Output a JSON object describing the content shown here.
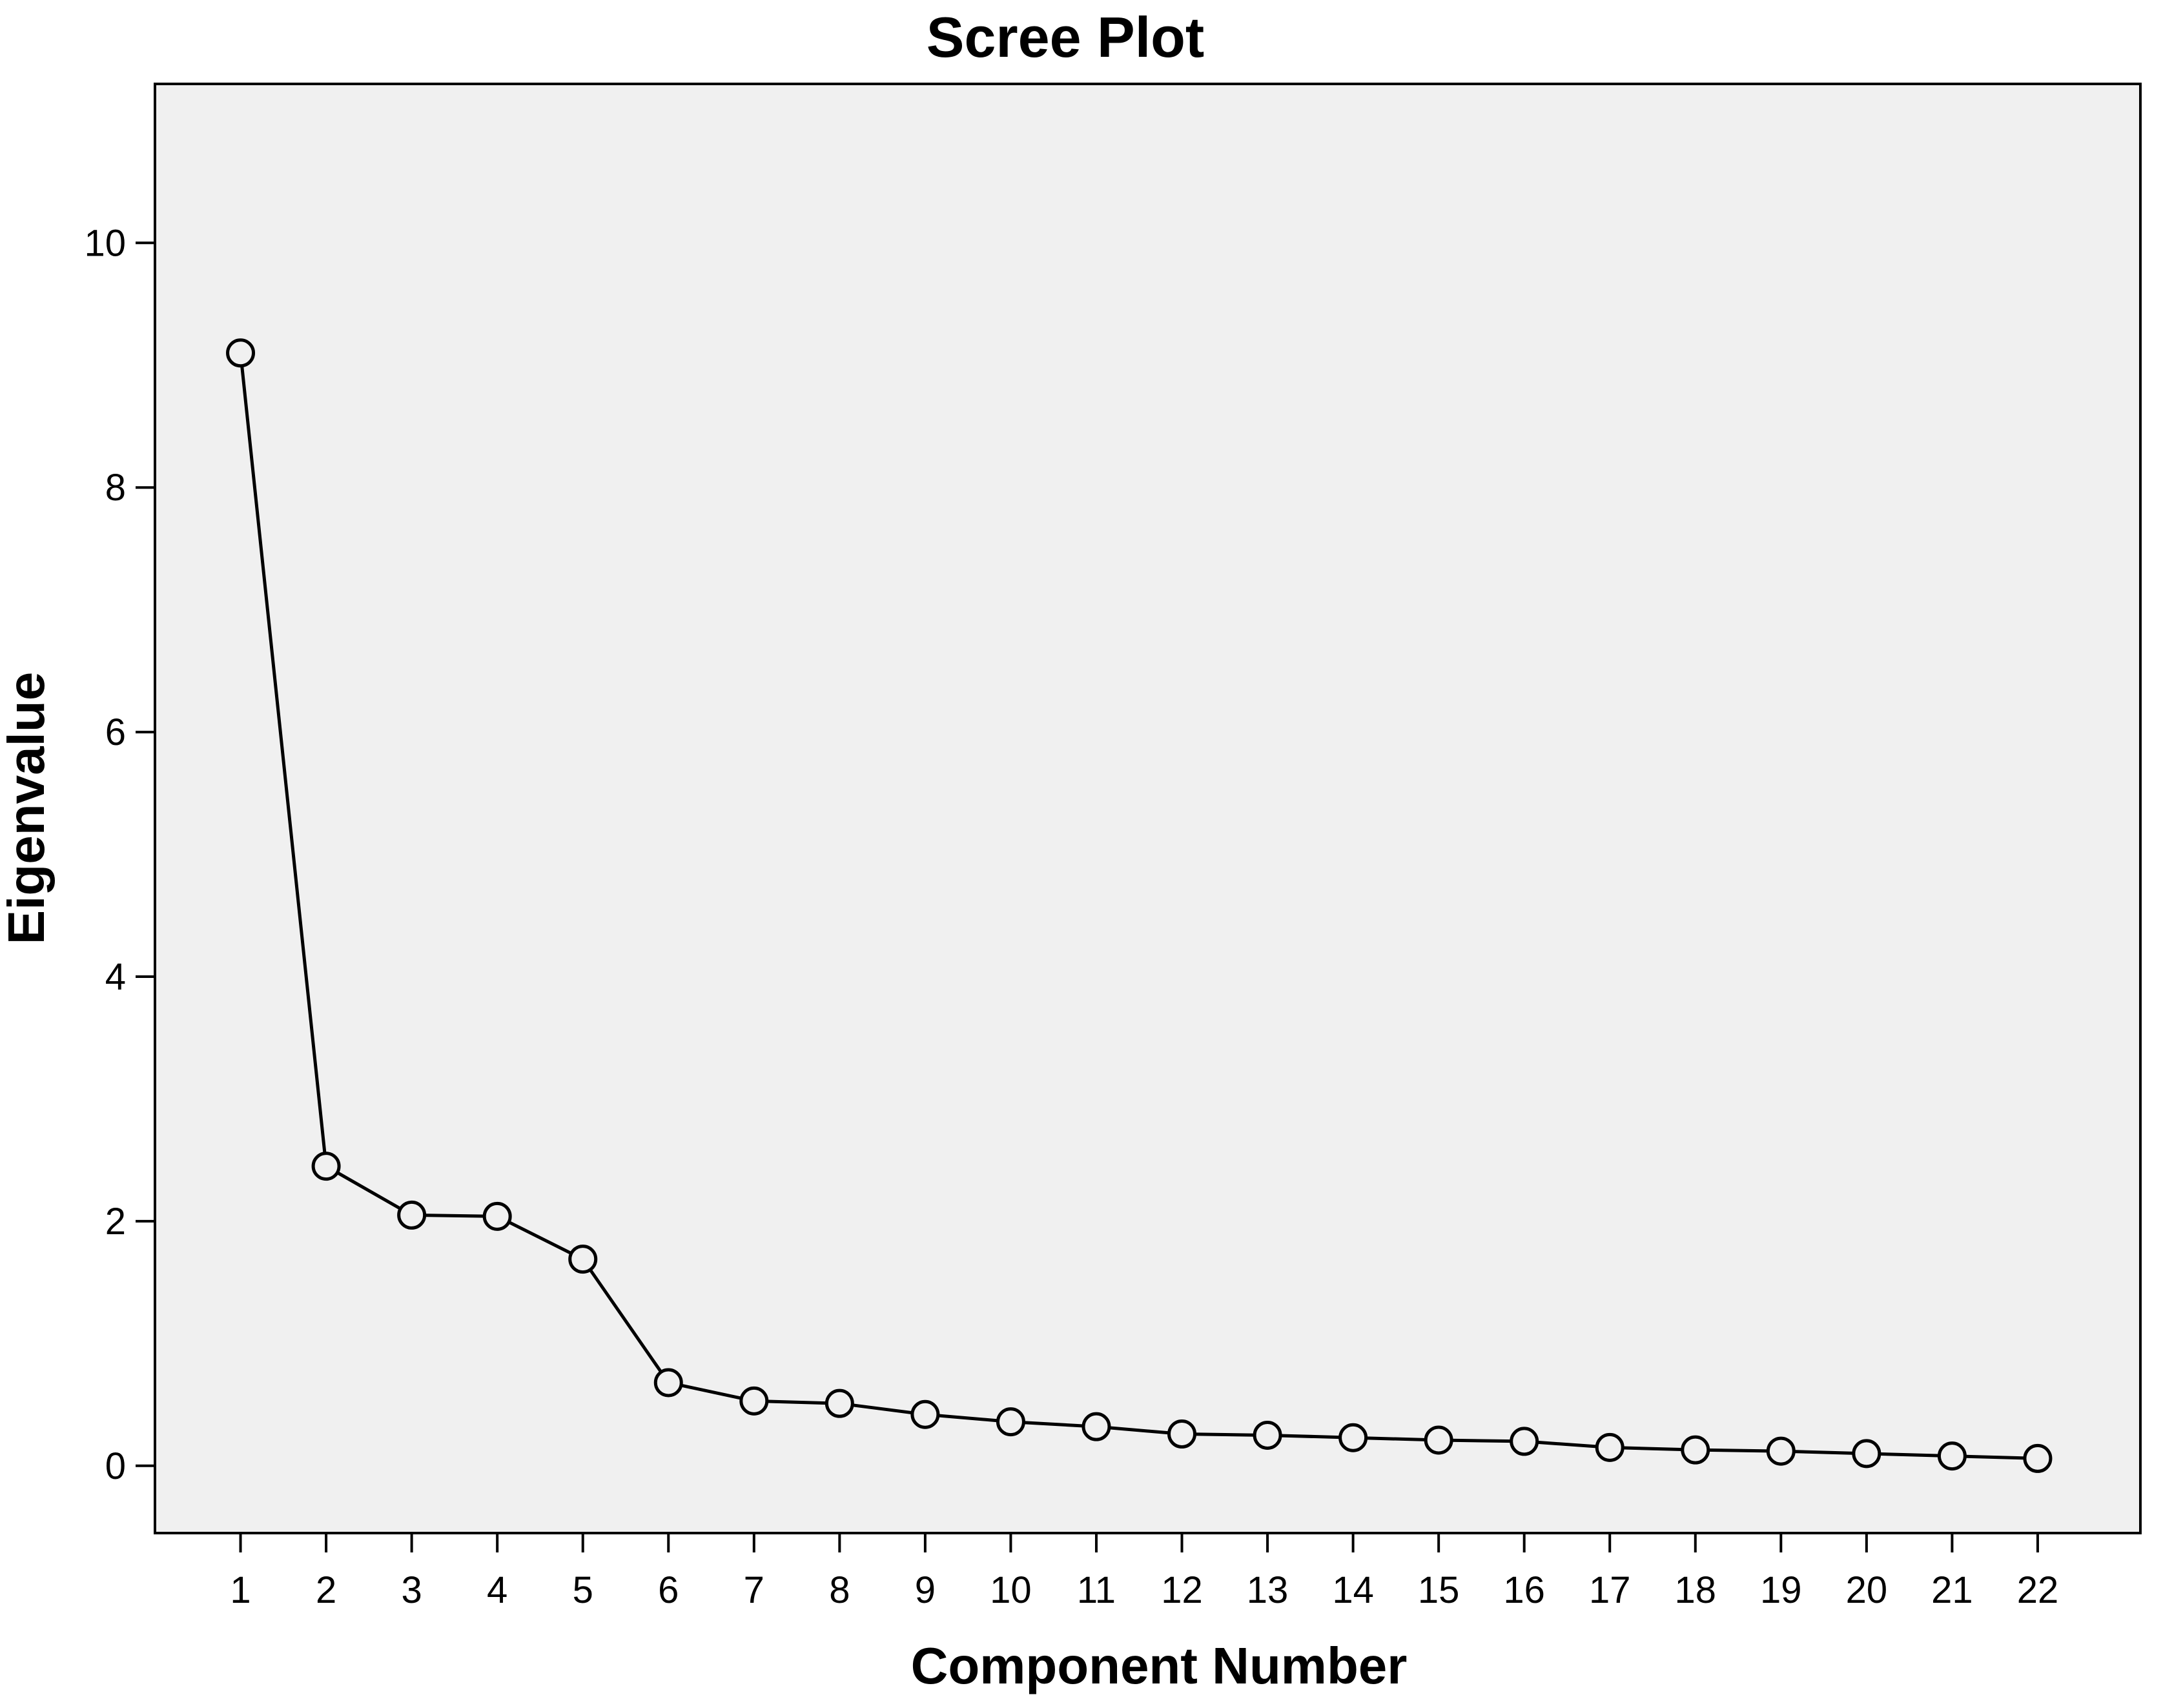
{
  "chart_data": {
    "type": "line",
    "title": "Scree Plot",
    "xlabel": "Component Number",
    "ylabel": "Eigenvalue",
    "x": [
      1,
      2,
      3,
      4,
      5,
      6,
      7,
      8,
      9,
      10,
      11,
      12,
      13,
      14,
      15,
      16,
      17,
      18,
      19,
      20,
      21,
      22
    ],
    "y": [
      9.1,
      2.45,
      2.05,
      2.04,
      1.69,
      0.68,
      0.53,
      0.51,
      0.42,
      0.36,
      0.32,
      0.26,
      0.25,
      0.23,
      0.21,
      0.2,
      0.15,
      0.13,
      0.12,
      0.1,
      0.08,
      0.06
    ],
    "xlim": [
      0,
      23.2
    ],
    "ylim": [
      -0.55,
      11.3
    ],
    "x_ticks": [
      "1",
      "2",
      "3",
      "4",
      "5",
      "6",
      "7",
      "8",
      "9",
      "10",
      "11",
      "12",
      "13",
      "14",
      "15",
      "16",
      "17",
      "18",
      "19",
      "20",
      "21",
      "22"
    ],
    "y_ticks": [
      "0",
      "2",
      "4",
      "6",
      "8",
      "10"
    ],
    "y_tick_values": [
      0,
      2,
      4,
      6,
      8,
      10
    ],
    "grid": false,
    "marker": "open-circle",
    "colors": {
      "plot_background": "#f0f0f0",
      "line": "#000000",
      "marker_fill": "#f0f0f0"
    }
  }
}
